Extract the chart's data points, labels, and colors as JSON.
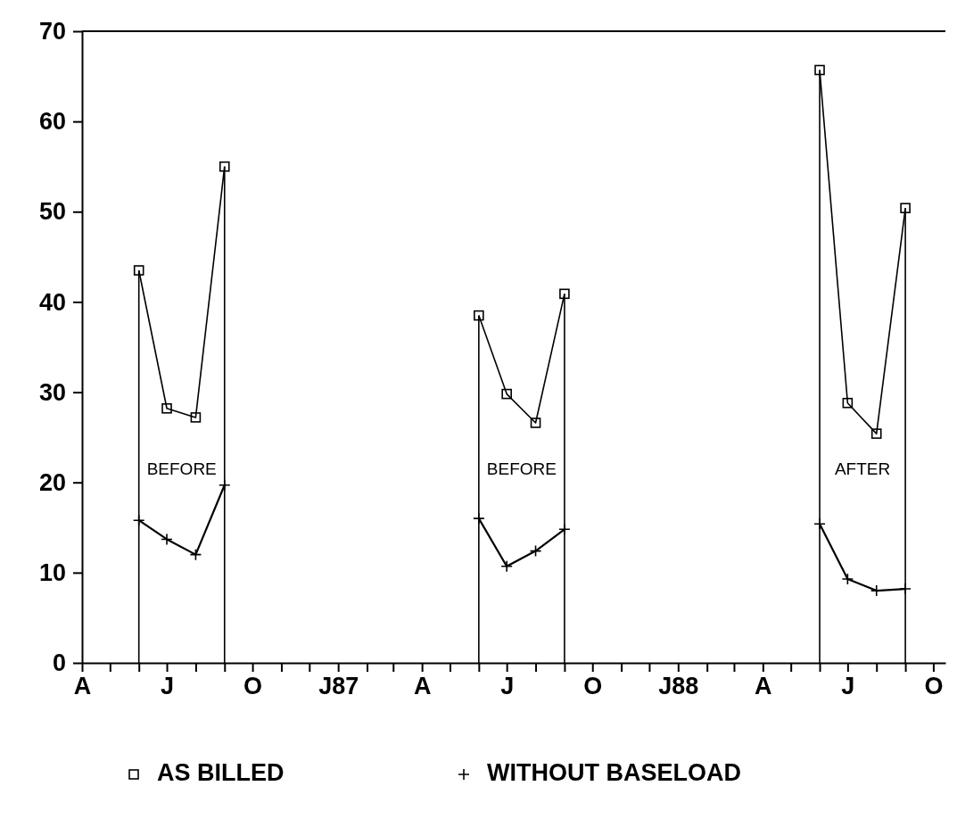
{
  "chart_data": {
    "type": "line",
    "x": [
      "1986-06",
      "1986-07",
      "1986-08",
      "1986-09",
      "1987-01",
      "1987-06",
      "1987-07",
      "1987-08",
      "1987-09",
      "1988-01",
      "1988-06",
      "1988-07",
      "1988-08",
      "1988-09"
    ],
    "series": [
      {
        "name": "AS BILLED",
        "color": "#000000",
        "marker": "square",
        "values": [
          43.5,
          28.2,
          27.2,
          55.0,
          null,
          38.5,
          29.8,
          26.6,
          40.9,
          null,
          65.7,
          28.8,
          25.4,
          50.4
        ]
      },
      {
        "name": "WITHOUT BASELOAD",
        "color": "#000000",
        "marker": "cross",
        "values": [
          15.8,
          13.7,
          12.0,
          19.7,
          null,
          16.0,
          10.7,
          12.4,
          14.8,
          null,
          15.4,
          9.3,
          8.0,
          8.2
        ]
      },
      {
        "type": "bar",
        "color": "#000000",
        "x": [
          "1986-06",
          "1986-09",
          "1987-06",
          "1987-09",
          "1988-06",
          "1988-09"
        ],
        "values": [
          43.5,
          55.0,
          38.5,
          40.9,
          65.7,
          50.4
        ]
      }
    ],
    "xlim": [
      "1986-04-01",
      "1988-10-14"
    ],
    "xticks": [
      {
        "value": "1986-04",
        "label": "A"
      },
      {
        "value": "1986-05",
        "label": null
      },
      {
        "value": "1986-06",
        "label": null
      },
      {
        "value": "1986-07",
        "label": "J"
      },
      {
        "value": "1986-08",
        "label": null
      },
      {
        "value": "1986-09",
        "label": null
      },
      {
        "value": "1986-10",
        "label": "O"
      },
      {
        "value": "1986-11",
        "label": null
      },
      {
        "value": "1986-12",
        "label": null
      },
      {
        "value": "1987-01",
        "label": "J87"
      },
      {
        "value": "1987-02",
        "label": null
      },
      {
        "value": "1987-03",
        "label": null
      },
      {
        "value": "1987-04",
        "label": "A"
      },
      {
        "value": "1987-05",
        "label": null
      },
      {
        "value": "1987-06",
        "label": null
      },
      {
        "value": "1987-07",
        "label": "J"
      },
      {
        "value": "1987-08",
        "label": null
      },
      {
        "value": "1987-09",
        "label": null
      },
      {
        "value": "1987-10",
        "label": "O"
      },
      {
        "value": "1987-11",
        "label": null
      },
      {
        "value": "1987-12",
        "label": null
      },
      {
        "value": "1988-01",
        "label": "J88"
      },
      {
        "value": "1988-02",
        "label": null
      },
      {
        "value": "1988-03",
        "label": null
      },
      {
        "value": "1988-04",
        "label": "A"
      },
      {
        "value": "1988-05",
        "label": null
      },
      {
        "value": "1988-06",
        "label": null
      },
      {
        "value": "1988-07",
        "label": "J"
      },
      {
        "value": "1988-08",
        "label": null
      },
      {
        "value": "1988-09",
        "label": null
      },
      {
        "value": "1988-10",
        "label": "O"
      }
    ],
    "ylim": [
      0,
      70
    ],
    "yticks": [
      0,
      10,
      20,
      30,
      40,
      50,
      60,
      70
    ],
    "grid": false,
    "legend": "bottom",
    "annotations": [
      "BEFORE",
      "BEFORE",
      "AFTER"
    ]
  }
}
